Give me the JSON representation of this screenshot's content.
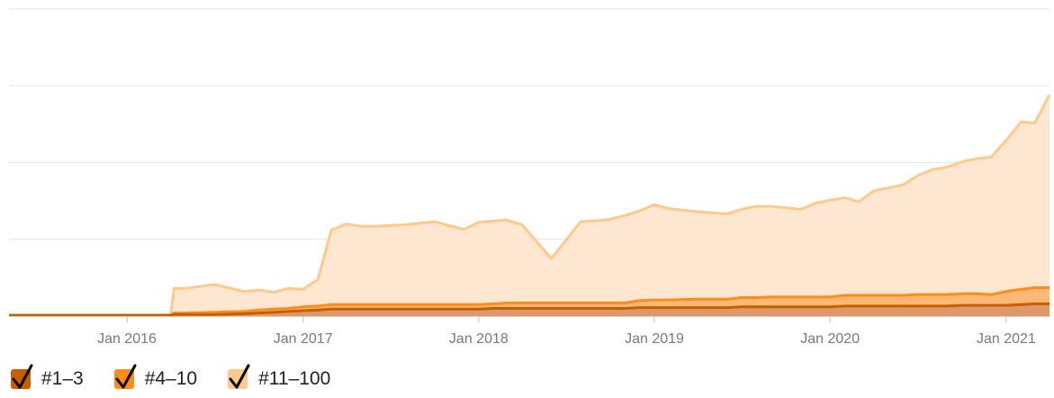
{
  "chart_data": {
    "type": "area",
    "stacked": true,
    "xlim": [
      "2015-05-01",
      "2021-04-01"
    ],
    "ylim": [
      0,
      4
    ],
    "y_gridlines": [
      1,
      2,
      3,
      4
    ],
    "x_ticks": [
      {
        "x": "2016-01-01",
        "label": "Jan 2016"
      },
      {
        "x": "2017-01-01",
        "label": "Jan 2017"
      },
      {
        "x": "2018-01-01",
        "label": "Jan 2018"
      },
      {
        "x": "2019-01-01",
        "label": "Jan 2019"
      },
      {
        "x": "2020-01-01",
        "label": "Jan 2020"
      },
      {
        "x": "2021-01-01",
        "label": "Jan 2021"
      }
    ],
    "x": [
      "2015-05-01",
      "2016-01-01",
      "2016-04-01",
      "2016-04-08",
      "2016-05-01",
      "2016-07-01",
      "2016-09-01",
      "2016-10-01",
      "2016-11-01",
      "2016-12-01",
      "2017-01-01",
      "2017-02-01",
      "2017-03-01",
      "2017-04-01",
      "2017-05-01",
      "2017-06-01",
      "2017-08-01",
      "2017-10-01",
      "2017-12-01",
      "2018-01-01",
      "2018-02-01",
      "2018-03-01",
      "2018-04-01",
      "2018-06-01",
      "2018-08-01",
      "2018-09-01",
      "2018-10-01",
      "2018-11-01",
      "2018-12-01",
      "2019-01-01",
      "2019-02-01",
      "2019-04-01",
      "2019-06-01",
      "2019-07-01",
      "2019-08-01",
      "2019-09-01",
      "2019-11-01",
      "2019-12-01",
      "2020-01-01",
      "2020-02-01",
      "2020-03-01",
      "2020-04-01",
      "2020-06-01",
      "2020-07-01",
      "2020-08-01",
      "2020-09-01",
      "2020-10-01",
      "2020-11-01",
      "2020-12-01",
      "2021-01-01",
      "2021-02-01",
      "2021-03-01",
      "2021-04-01"
    ],
    "series": [
      {
        "name": "#1–3",
        "color": "#c85e00",
        "fill": "#dc8d5a",
        "values": [
          0.01,
          0.01,
          0.01,
          0.02,
          0.02,
          0.02,
          0.03,
          0.04,
          0.05,
          0.06,
          0.07,
          0.08,
          0.09,
          0.09,
          0.09,
          0.09,
          0.09,
          0.09,
          0.09,
          0.09,
          0.1,
          0.1,
          0.1,
          0.1,
          0.1,
          0.1,
          0.1,
          0.1,
          0.11,
          0.11,
          0.11,
          0.11,
          0.11,
          0.12,
          0.12,
          0.12,
          0.12,
          0.12,
          0.12,
          0.13,
          0.13,
          0.13,
          0.13,
          0.13,
          0.13,
          0.13,
          0.14,
          0.14,
          0.14,
          0.14,
          0.15,
          0.16,
          0.16
        ]
      },
      {
        "name": "#4–10",
        "color": "#ff8c1a",
        "fill": "#ffb066",
        "values": [
          0.0,
          0.0,
          0.0,
          0.02,
          0.02,
          0.03,
          0.03,
          0.04,
          0.04,
          0.04,
          0.05,
          0.05,
          0.06,
          0.06,
          0.06,
          0.06,
          0.06,
          0.06,
          0.06,
          0.06,
          0.06,
          0.07,
          0.07,
          0.07,
          0.07,
          0.07,
          0.07,
          0.07,
          0.09,
          0.1,
          0.1,
          0.11,
          0.11,
          0.12,
          0.12,
          0.13,
          0.13,
          0.13,
          0.13,
          0.14,
          0.14,
          0.14,
          0.14,
          0.15,
          0.15,
          0.15,
          0.15,
          0.15,
          0.14,
          0.18,
          0.2,
          0.21,
          0.21
        ]
      },
      {
        "name": "#11–100",
        "color": "#ffc98b",
        "fill": "#fee4cb",
        "values": [
          0.0,
          0.0,
          0.0,
          0.32,
          0.32,
          0.36,
          0.26,
          0.26,
          0.22,
          0.26,
          0.23,
          0.35,
          0.97,
          1.05,
          1.02,
          1.02,
          1.04,
          1.08,
          0.98,
          1.07,
          1.08,
          1.08,
          1.02,
          0.58,
          1.06,
          1.07,
          1.09,
          1.14,
          1.17,
          1.24,
          1.19,
          1.14,
          1.11,
          1.15,
          1.19,
          1.18,
          1.14,
          1.22,
          1.26,
          1.27,
          1.22,
          1.36,
          1.44,
          1.55,
          1.63,
          1.66,
          1.72,
          1.76,
          1.79,
          1.97,
          2.18,
          2.14,
          2.51
        ]
      }
    ],
    "legend_placement": "bottom-left",
    "grid": true
  }
}
